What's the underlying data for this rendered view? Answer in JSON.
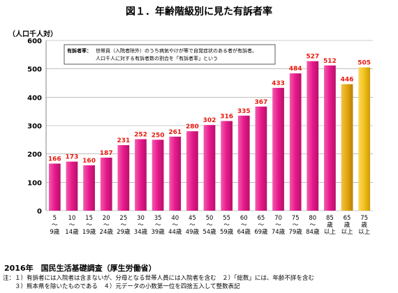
{
  "figure_title": "図１．年齢階級別に見た有訴者率",
  "chart_data": {
    "type": "bar",
    "title": "図１．年齢階級別に見た有訴者率",
    "ylabel": "（人口千人対）",
    "xlabel": "",
    "ylim": [
      0,
      600
    ],
    "yticks": [
      0,
      100,
      200,
      300,
      400,
      500,
      600
    ],
    "grid": true,
    "categories": [
      [
        "5",
        "～",
        "9歳"
      ],
      [
        "10",
        "～",
        "14歳"
      ],
      [
        "15",
        "～",
        "19歳"
      ],
      [
        "20",
        "～",
        "24歳"
      ],
      [
        "25",
        "～",
        "29歳"
      ],
      [
        "30",
        "～",
        "34歳"
      ],
      [
        "35",
        "～",
        "39歳"
      ],
      [
        "40",
        "～",
        "44歳"
      ],
      [
        "45",
        "～",
        "49歳"
      ],
      [
        "50",
        "～",
        "54歳"
      ],
      [
        "55",
        "～",
        "59歳"
      ],
      [
        "60",
        "～",
        "64歳"
      ],
      [
        "65",
        "～",
        "69歳"
      ],
      [
        "70",
        "～",
        "74歳"
      ],
      [
        "75",
        "～",
        "79歳"
      ],
      [
        "80",
        "～",
        "84歳"
      ],
      [
        "85",
        "歳",
        "以上"
      ],
      [
        "65",
        "歳",
        "以上"
      ],
      [
        "75",
        "歳",
        "以上"
      ]
    ],
    "values": [
      166,
      173,
      160,
      187,
      231,
      252,
      250,
      261,
      280,
      302,
      316,
      335,
      367,
      433,
      484,
      527,
      512,
      446,
      505
    ],
    "bar_colors": [
      "#e8198b",
      "#e8198b",
      "#e8198b",
      "#e8198b",
      "#e8198b",
      "#e8198b",
      "#e8198b",
      "#e8198b",
      "#e8198b",
      "#e8198b",
      "#e8198b",
      "#e8198b",
      "#e8198b",
      "#e8198b",
      "#e8198b",
      "#e8198b",
      "#e8198b",
      "#e3a60f",
      "#f2c21a"
    ],
    "value_label_color": "#e8190e",
    "annotation": {
      "label": "有訴者率：",
      "lines": [
        "世帯員（入院者除外）のうち病気やけが等で自覚症状のある者が有訴者。",
        "人口千人に対する有訴者数の割合を「有訴者率」という"
      ]
    }
  },
  "source": "2016年　国民生活基礎調査（厚生労働省）",
  "notes": [
    "注：１）有訴者には入院者は含まないが、分母となる世帯人員には入院者を含む　２）「総数」には、年齢不詳を含む",
    "　　３）熊本県を除いたものである　４）元データの小数第一位を四捨五入して整数表記"
  ]
}
